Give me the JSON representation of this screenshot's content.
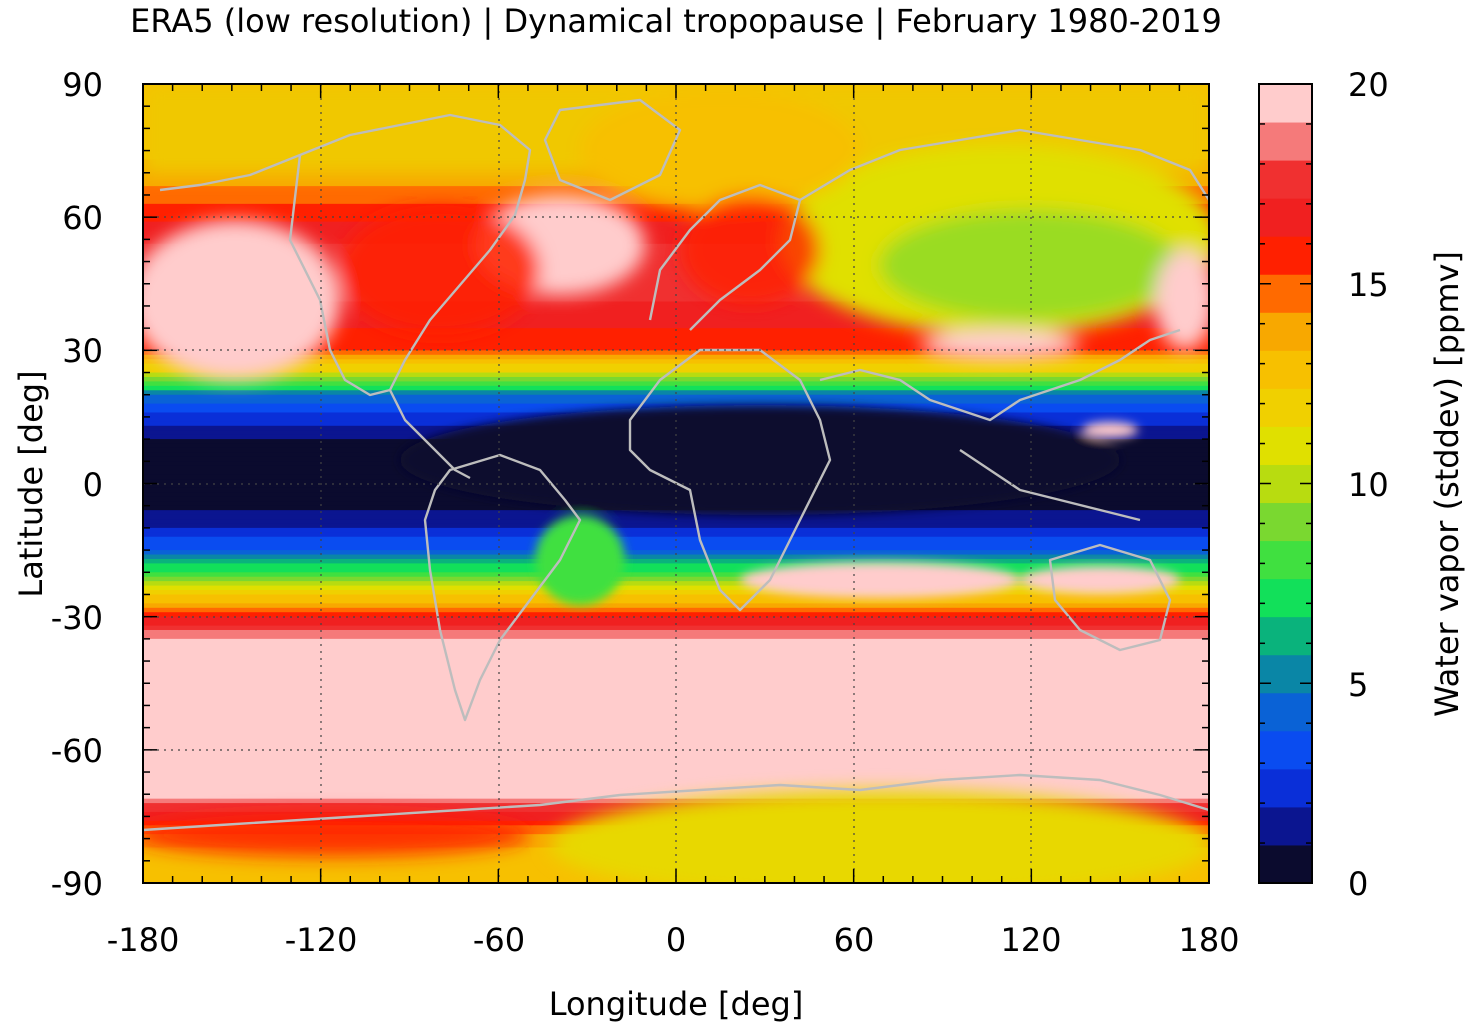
{
  "title": "ERA5 (low resolution) | Dynamical tropopause | February 1980-2019",
  "chart_data": {
    "type": "heatmap",
    "title": "ERA5 (low resolution) | Dynamical tropopause | February 1980-2019",
    "xlabel": "Longitude [deg]",
    "ylabel": "Latitude [deg]",
    "colorbar_label": "Water vapor (stddev) [ppmv]",
    "xlim": [
      -180,
      180
    ],
    "ylim": [
      -90,
      90
    ],
    "clim": [
      0,
      20
    ],
    "x_ticks": [
      -180,
      -120,
      -60,
      0,
      60,
      120,
      180
    ],
    "x_tick_labels": [
      "-180",
      "-120",
      "-60",
      "0",
      "60",
      "120",
      "180"
    ],
    "y_ticks": [
      -90,
      -60,
      -30,
      0,
      30,
      60,
      90
    ],
    "y_tick_labels": [
      "-90",
      "-60",
      "-30",
      "0",
      "30",
      "60",
      "90"
    ],
    "colorbar_ticks": [
      0,
      5,
      10,
      15,
      20
    ],
    "colorbar_tick_labels": [
      "0",
      "5",
      "10",
      "15",
      "20"
    ],
    "grid": true,
    "coastlines": true,
    "colorbar_colors": [
      "#0b0b2e",
      "#0b1590",
      "#0a2fd8",
      "#0a4cf0",
      "#0a62d6",
      "#0a86a6",
      "#0ab37c",
      "#12e05a",
      "#40e040",
      "#7ad830",
      "#b8dc10",
      "#e0e000",
      "#f0d000",
      "#f7c000",
      "#f8a800",
      "#ff6a00",
      "#ff2000",
      "#f02020",
      "#f03030",
      "#f57a7a",
      "#ffcccc"
    ],
    "zonal_profile": [
      {
        "lat": 90,
        "value": 12.5
      },
      {
        "lat": 80,
        "value": 13.0
      },
      {
        "lat": 70,
        "value": 13.5
      },
      {
        "lat": 60,
        "value": 16.0
      },
      {
        "lat": 50,
        "value": 18.0
      },
      {
        "lat": 40,
        "value": 17.0
      },
      {
        "lat": 30,
        "value": 15.5
      },
      {
        "lat": 25,
        "value": 11.0
      },
      {
        "lat": 20,
        "value": 5.0
      },
      {
        "lat": 15,
        "value": 2.5
      },
      {
        "lat": 10,
        "value": 1.0
      },
      {
        "lat": 5,
        "value": 0.5
      },
      {
        "lat": 0,
        "value": 0.5
      },
      {
        "lat": -5,
        "value": 0.8
      },
      {
        "lat": -10,
        "value": 2.0
      },
      {
        "lat": -15,
        "value": 4.0
      },
      {
        "lat": -20,
        "value": 8.0
      },
      {
        "lat": -25,
        "value": 12.0
      },
      {
        "lat": -30,
        "value": 16.0
      },
      {
        "lat": -35,
        "value": 19.0
      },
      {
        "lat": -45,
        "value": 20.0
      },
      {
        "lat": -60,
        "value": 20.0
      },
      {
        "lat": -70,
        "value": 19.5
      },
      {
        "lat": -75,
        "value": 16.5
      },
      {
        "lat": -80,
        "value": 13.5
      },
      {
        "lat": -90,
        "value": 12.5
      }
    ]
  }
}
